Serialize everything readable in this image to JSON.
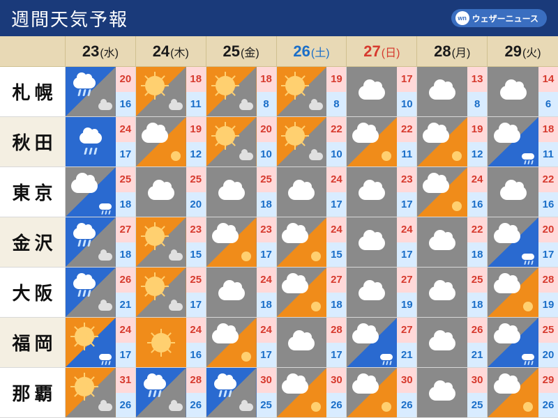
{
  "header": {
    "title": "週間天気予報",
    "brand_label": "ウェザーニュース",
    "brand_icon": "wn"
  },
  "colors": {
    "header_bg": "#1a3a7a",
    "days_bg": "#e8d9b5",
    "alt_row_bg": "#f4efe2",
    "hi_bg": "#ffd9d9",
    "hi_fg": "#d63a2e",
    "lo_bg": "#d9ecff",
    "lo_fg": "#1a6ec8",
    "sun_bg": "#f08c1a",
    "rain_bg": "#2a6ad0",
    "cloud_bg": "#8a8a8a",
    "sat_fg": "#1a6ec8",
    "sun_fg": "#d63a2e"
  },
  "days": [
    {
      "num": "23",
      "dow": "(水)",
      "cls": ""
    },
    {
      "num": "24",
      "dow": "(木)",
      "cls": ""
    },
    {
      "num": "25",
      "dow": "(金)",
      "cls": ""
    },
    {
      "num": "26",
      "dow": "(土)",
      "cls": "sat"
    },
    {
      "num": "27",
      "dow": "(日)",
      "cls": "sun"
    },
    {
      "num": "28",
      "dow": "(月)",
      "cls": ""
    },
    {
      "num": "29",
      "dow": "(火)",
      "cls": ""
    }
  ],
  "cities": [
    {
      "name": "札幌",
      "cells": [
        {
          "a": "rain",
          "b": "cloud",
          "hi": "20",
          "lo": "16"
        },
        {
          "a": "sun",
          "b": "cloud",
          "hi": "18",
          "lo": "11"
        },
        {
          "a": "sun",
          "b": "cloud",
          "hi": "18",
          "lo": "8"
        },
        {
          "a": "sun",
          "b": "cloud",
          "hi": "19",
          "lo": "8"
        },
        {
          "a": "cloud",
          "b": "",
          "hi": "17",
          "lo": "10"
        },
        {
          "a": "cloud",
          "b": "",
          "hi": "13",
          "lo": "8"
        },
        {
          "a": "cloud",
          "b": "",
          "hi": "14",
          "lo": "6"
        }
      ]
    },
    {
      "name": "秋田",
      "cells": [
        {
          "a": "rain",
          "b": "",
          "hi": "24",
          "lo": "17"
        },
        {
          "a": "cloud",
          "b": "sun",
          "hi": "19",
          "lo": "12"
        },
        {
          "a": "sun",
          "b": "cloud",
          "hi": "20",
          "lo": "10"
        },
        {
          "a": "sun",
          "b": "cloud",
          "hi": "22",
          "lo": "10"
        },
        {
          "a": "cloud",
          "b": "sun",
          "hi": "22",
          "lo": "11"
        },
        {
          "a": "cloud",
          "b": "sun",
          "hi": "19",
          "lo": "12"
        },
        {
          "a": "cloud",
          "b": "rain",
          "hi": "18",
          "lo": "11"
        }
      ]
    },
    {
      "name": "東京",
      "cells": [
        {
          "a": "cloud",
          "b": "rain",
          "hi": "25",
          "lo": "18"
        },
        {
          "a": "cloud",
          "b": "",
          "hi": "25",
          "lo": "20"
        },
        {
          "a": "cloud",
          "b": "",
          "hi": "25",
          "lo": "18"
        },
        {
          "a": "cloud",
          "b": "",
          "hi": "24",
          "lo": "17"
        },
        {
          "a": "cloud",
          "b": "",
          "hi": "23",
          "lo": "17"
        },
        {
          "a": "cloud",
          "b": "sun",
          "hi": "24",
          "lo": "16"
        },
        {
          "a": "cloud",
          "b": "",
          "hi": "22",
          "lo": "16"
        }
      ]
    },
    {
      "name": "金沢",
      "cells": [
        {
          "a": "rain",
          "b": "cloud",
          "hi": "27",
          "lo": "18"
        },
        {
          "a": "sun",
          "b": "cloud",
          "hi": "23",
          "lo": "15"
        },
        {
          "a": "cloud",
          "b": "sun",
          "hi": "23",
          "lo": "17"
        },
        {
          "a": "cloud",
          "b": "sun",
          "hi": "24",
          "lo": "15"
        },
        {
          "a": "cloud",
          "b": "",
          "hi": "24",
          "lo": "17"
        },
        {
          "a": "cloud",
          "b": "",
          "hi": "22",
          "lo": "18"
        },
        {
          "a": "cloud",
          "b": "rain",
          "hi": "20",
          "lo": "17"
        }
      ]
    },
    {
      "name": "大阪",
      "cells": [
        {
          "a": "rain",
          "b": "cloud",
          "hi": "26",
          "lo": "21"
        },
        {
          "a": "sun",
          "b": "cloud",
          "hi": "25",
          "lo": "17"
        },
        {
          "a": "cloud",
          "b": "",
          "hi": "24",
          "lo": "18"
        },
        {
          "a": "cloud",
          "b": "sun",
          "hi": "27",
          "lo": "18"
        },
        {
          "a": "cloud",
          "b": "",
          "hi": "27",
          "lo": "19"
        },
        {
          "a": "cloud",
          "b": "",
          "hi": "25",
          "lo": "18"
        },
        {
          "a": "cloud",
          "b": "sun",
          "hi": "28",
          "lo": "19"
        }
      ]
    },
    {
      "name": "福岡",
      "cells": [
        {
          "a": "sun",
          "b": "rain",
          "hi": "24",
          "lo": "17"
        },
        {
          "a": "sun",
          "b": "",
          "hi": "24",
          "lo": "16"
        },
        {
          "a": "cloud",
          "b": "sun",
          "hi": "24",
          "lo": "17"
        },
        {
          "a": "cloud",
          "b": "",
          "hi": "28",
          "lo": "17"
        },
        {
          "a": "cloud",
          "b": "rain",
          "hi": "27",
          "lo": "21"
        },
        {
          "a": "cloud",
          "b": "",
          "hi": "26",
          "lo": "21"
        },
        {
          "a": "cloud",
          "b": "rain",
          "hi": "25",
          "lo": "20"
        }
      ]
    },
    {
      "name": "那覇",
      "cells": [
        {
          "a": "sun",
          "b": "cloud",
          "hi": "31",
          "lo": "26"
        },
        {
          "a": "rain",
          "b": "cloud",
          "hi": "28",
          "lo": "26"
        },
        {
          "a": "rain",
          "b": "cloud",
          "hi": "30",
          "lo": "25"
        },
        {
          "a": "cloud",
          "b": "sun",
          "hi": "30",
          "lo": "26"
        },
        {
          "a": "cloud",
          "b": "sun",
          "hi": "30",
          "lo": "26"
        },
        {
          "a": "cloud",
          "b": "",
          "hi": "30",
          "lo": "25"
        },
        {
          "a": "cloud",
          "b": "sun",
          "hi": "29",
          "lo": "26"
        }
      ]
    }
  ]
}
